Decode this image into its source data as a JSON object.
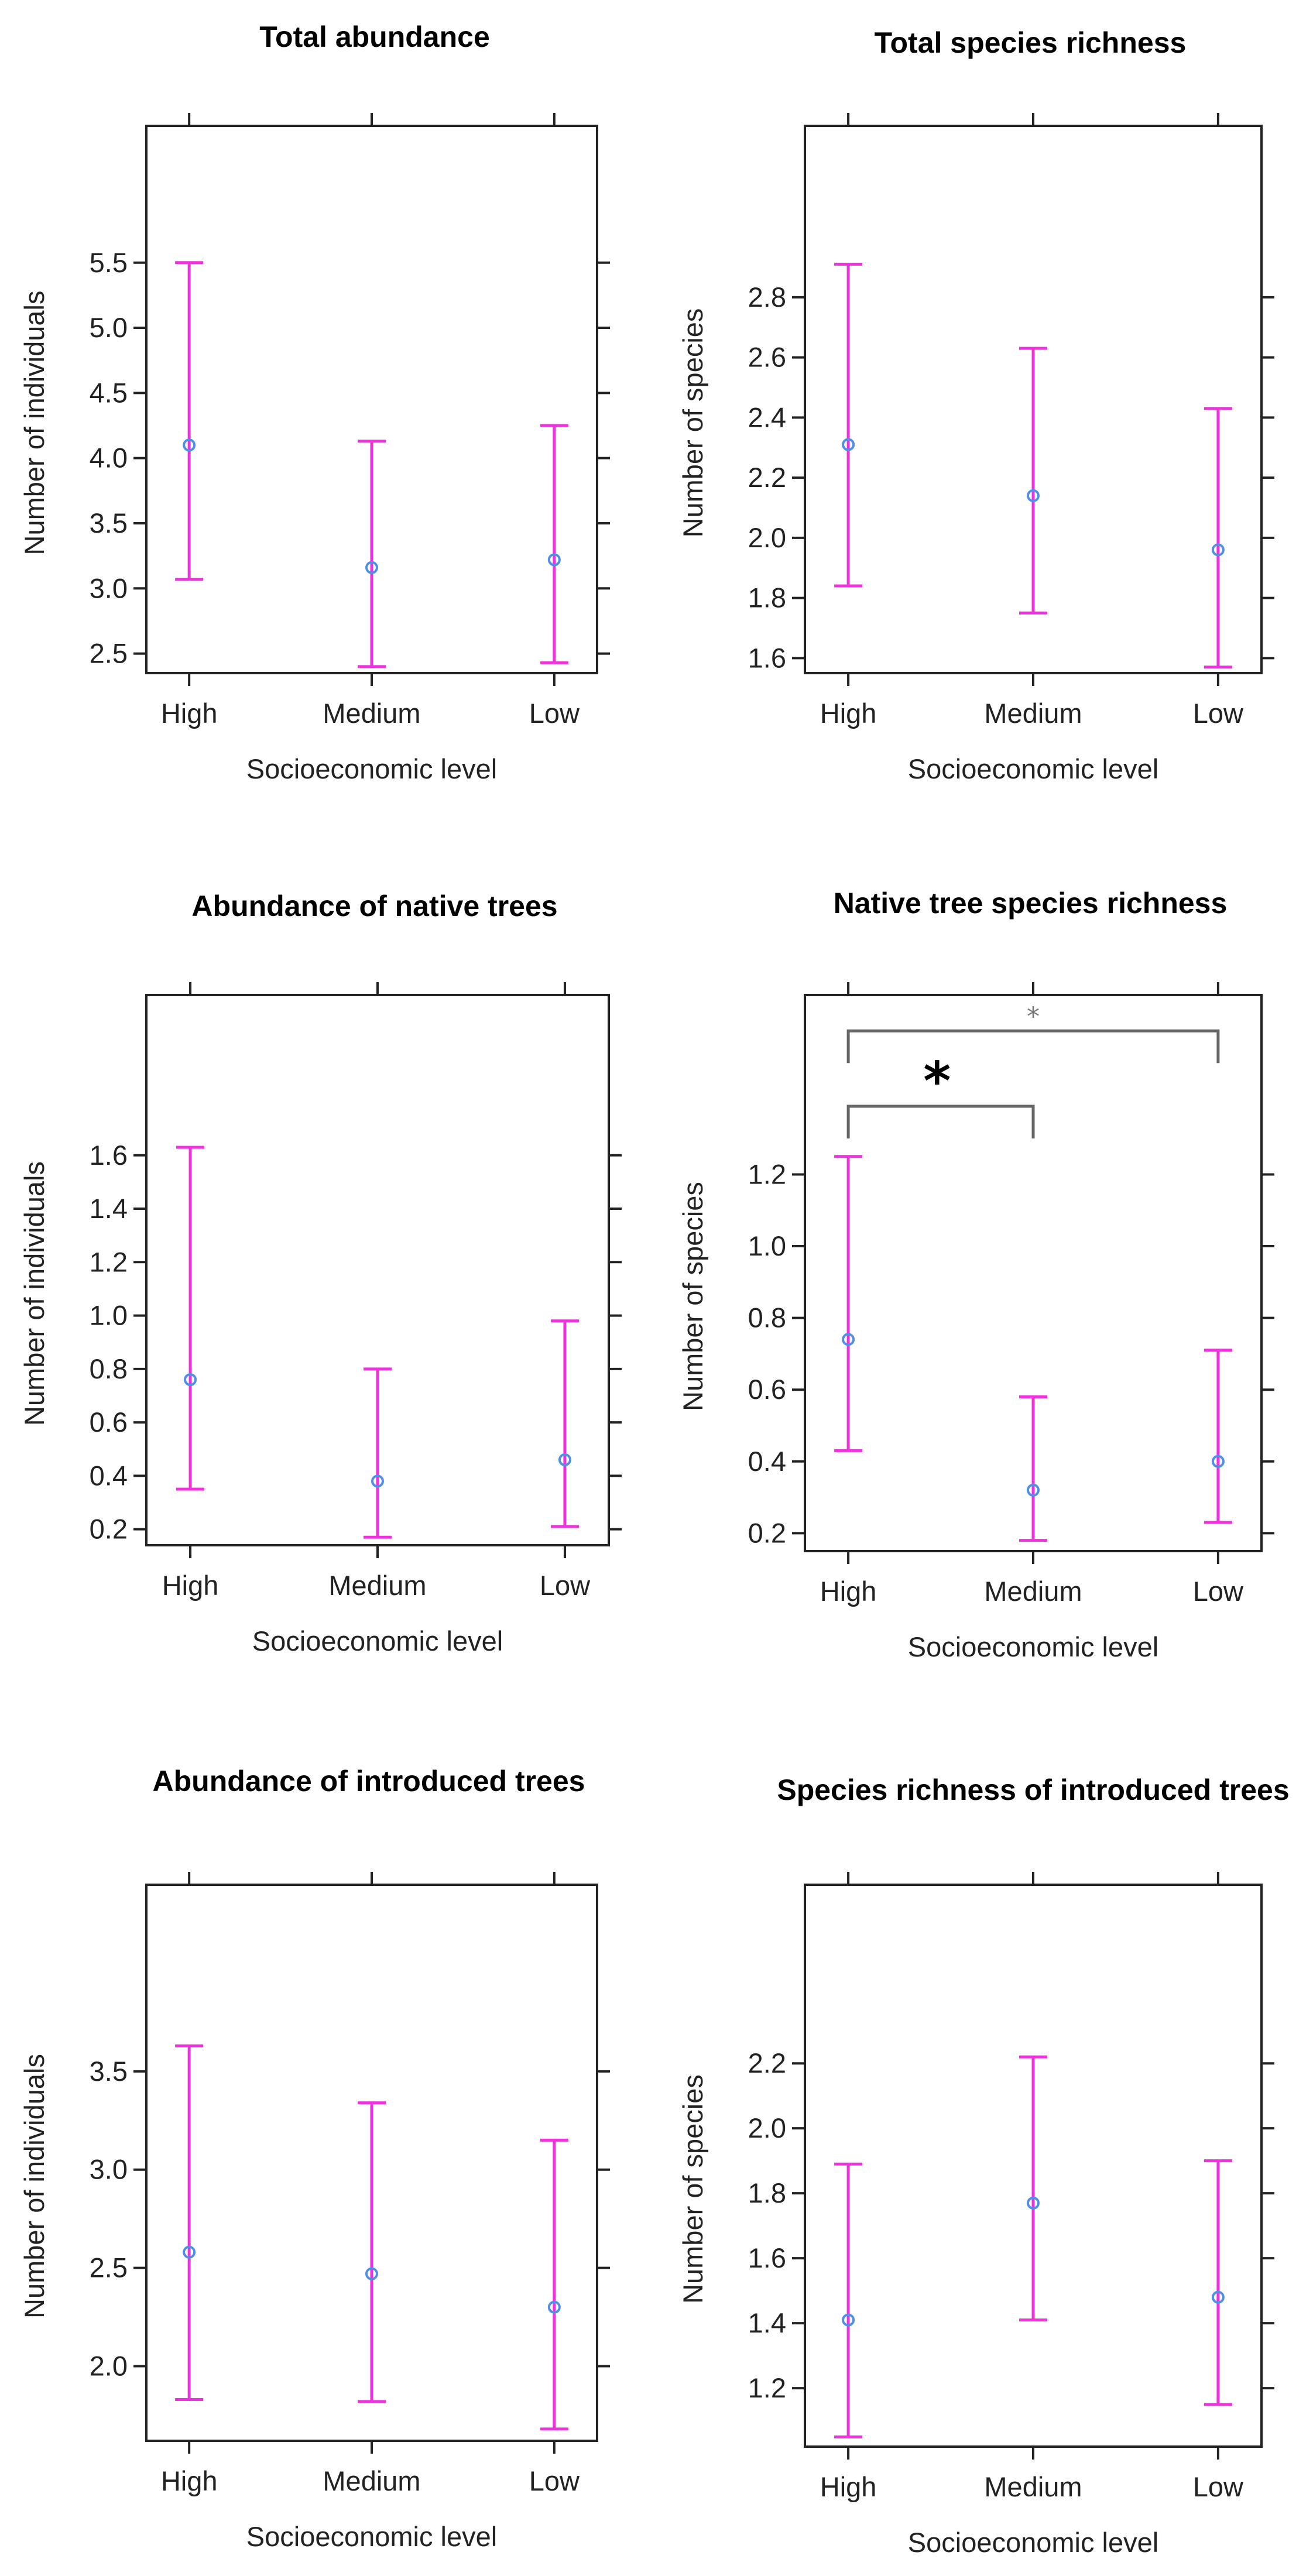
{
  "chart_data": [
    {
      "type": "errorbar",
      "title": "Total abundance",
      "xlabel": "Socioeconomic level",
      "ylabel": "Number of individuals",
      "categories": [
        "High",
        "Medium",
        "Low"
      ],
      "means": [
        4.1,
        3.16,
        3.22
      ],
      "lower": [
        3.07,
        2.4,
        2.43
      ],
      "upper": [
        5.5,
        4.13,
        4.25
      ],
      "ylim": [
        2.35,
        6.55
      ],
      "yticks": [
        "2.5",
        "3.0",
        "3.5",
        "4.0",
        "4.5",
        "5.0",
        "5.5"
      ],
      "brackets": []
    },
    {
      "type": "errorbar",
      "title": "Total species richness",
      "xlabel": "Socioeconomic level",
      "ylabel": "Number of species",
      "categories": [
        "High",
        "Medium",
        "Low"
      ],
      "means": [
        2.31,
        2.14,
        1.96
      ],
      "lower": [
        1.84,
        1.75,
        1.57
      ],
      "upper": [
        2.91,
        2.63,
        2.43
      ],
      "ylim": [
        1.55,
        3.37
      ],
      "yticks": [
        "1.6",
        "1.8",
        "2.0",
        "2.2",
        "2.4",
        "2.6",
        "2.8"
      ],
      "brackets": []
    },
    {
      "type": "errorbar",
      "title": "Abundance of native trees",
      "xlabel": "Socioeconomic level",
      "ylabel": "Number of individuals",
      "categories": [
        "High",
        "Medium",
        "Low"
      ],
      "means": [
        0.76,
        0.38,
        0.46
      ],
      "lower": [
        0.35,
        0.17,
        0.21
      ],
      "upper": [
        1.63,
        0.8,
        0.98
      ],
      "ylim": [
        0.14,
        2.2
      ],
      "yticks": [
        "0.2",
        "0.4",
        "0.6",
        "0.8",
        "1.0",
        "1.2",
        "1.4",
        "1.6"
      ],
      "brackets": []
    },
    {
      "type": "errorbar",
      "title": "Native tree species richness",
      "xlabel": "Socioeconomic level",
      "ylabel": "Number of species",
      "categories": [
        "High",
        "Medium",
        "Low"
      ],
      "means": [
        0.74,
        0.32,
        0.4
      ],
      "lower": [
        0.43,
        0.18,
        0.23
      ],
      "upper": [
        1.25,
        0.58,
        0.71
      ],
      "ylim": [
        0.15,
        1.7
      ],
      "yticks": [
        "0.2",
        "0.4",
        "0.6",
        "0.8",
        "1.0",
        "1.2"
      ],
      "brackets": [
        {
          "from": 0,
          "to": 1,
          "label": "*",
          "y": 1.39,
          "style": "big"
        },
        {
          "from": 0,
          "to": 2,
          "label": "*",
          "y": 1.6,
          "style": "small"
        }
      ]
    },
    {
      "type": "errorbar",
      "title": "Abundance of introduced trees",
      "xlabel": "Socioeconomic level",
      "ylabel": "Number of individuals",
      "categories": [
        "High",
        "Medium",
        "Low"
      ],
      "means": [
        2.58,
        2.47,
        2.3
      ],
      "lower": [
        1.83,
        1.82,
        1.68
      ],
      "upper": [
        3.63,
        3.34,
        3.15
      ],
      "ylim": [
        1.62,
        4.45
      ],
      "yticks": [
        "2.0",
        "2.5",
        "3.0",
        "3.5"
      ],
      "brackets": []
    },
    {
      "type": "errorbar",
      "title": "Species richness of introduced trees",
      "xlabel": "Socioeconomic level",
      "ylabel": "Number of species",
      "categories": [
        "High",
        "Medium",
        "Low"
      ],
      "means": [
        1.41,
        1.77,
        1.48
      ],
      "lower": [
        1.05,
        1.41,
        1.15
      ],
      "upper": [
        1.89,
        2.22,
        1.9
      ],
      "ylim": [
        1.02,
        2.75
      ],
      "yticks": [
        "1.2",
        "1.4",
        "1.6",
        "1.8",
        "2.0",
        "2.2"
      ],
      "brackets": []
    }
  ]
}
